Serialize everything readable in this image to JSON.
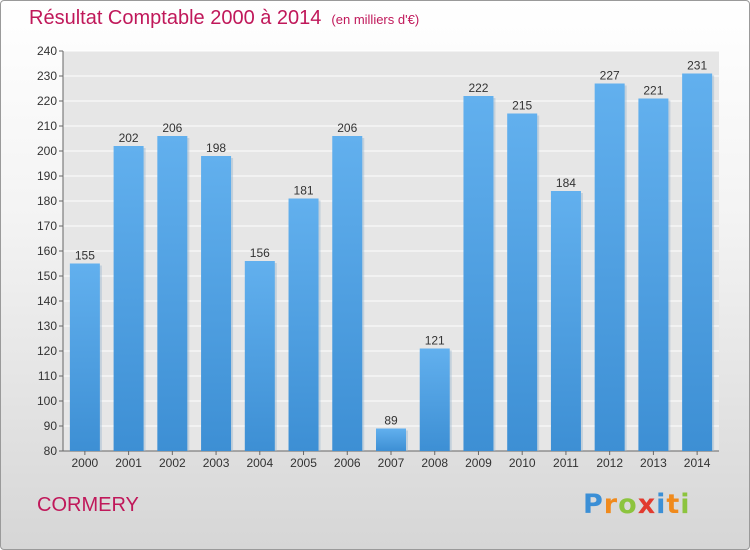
{
  "title": "Résultat Comptable 2000 à 2014",
  "subtitle": "(en milliers d'€)",
  "commune": "CORMERY",
  "logo": {
    "text": "Proxiti",
    "letters": [
      {
        "ch": "P",
        "color": "#3b8fd6"
      },
      {
        "ch": "r",
        "color": "#f08a1c"
      },
      {
        "ch": "o",
        "color": "#8cc43e"
      },
      {
        "ch": "x",
        "color": "#e23b2f"
      },
      {
        "ch": "i",
        "color": "#3b8fd6"
      },
      {
        "ch": "t",
        "color": "#f08a1c"
      },
      {
        "ch": "i",
        "color": "#8cc43e"
      }
    ]
  },
  "chart_data": {
    "type": "bar",
    "categories": [
      "2000",
      "2001",
      "2002",
      "2003",
      "2004",
      "2005",
      "2006",
      "2007",
      "2008",
      "2009",
      "2010",
      "2011",
      "2012",
      "2013",
      "2014"
    ],
    "values": [
      155,
      202,
      206,
      198,
      156,
      181,
      206,
      89,
      121,
      222,
      215,
      184,
      227,
      221,
      231
    ],
    "ylim": [
      80,
      240
    ],
    "yticks": [
      80,
      90,
      100,
      110,
      120,
      130,
      140,
      150,
      160,
      170,
      180,
      190,
      200,
      210,
      220,
      230,
      240
    ],
    "grid": true,
    "bar_color": "#3d8fd4",
    "bar_color_light": "#62b0ee"
  }
}
